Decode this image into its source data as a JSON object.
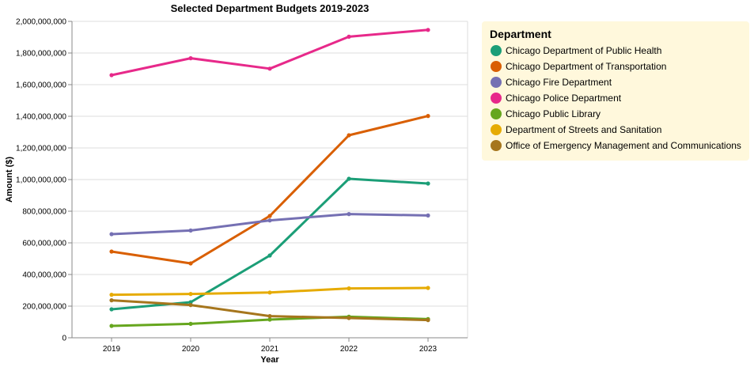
{
  "chart_data": {
    "type": "line",
    "title": "Selected Department Budgets 2019-2023",
    "xlabel": "Year",
    "ylabel": "Amount ($)",
    "x": [
      2019,
      2020,
      2021,
      2022,
      2023
    ],
    "x_tick_labels": [
      "2019",
      "2020",
      "2021",
      "2022",
      "2023"
    ],
    "ylim": [
      0,
      2000000000
    ],
    "y_ticks": [
      0,
      200000000,
      400000000,
      600000000,
      800000000,
      1000000000,
      1200000000,
      1400000000,
      1600000000,
      1800000000,
      2000000000
    ],
    "y_tick_labels": [
      "0",
      "200,000,000",
      "400,000,000",
      "600,000,000",
      "800,000,000",
      "1,000,000,000",
      "1,200,000,000",
      "1,400,000,000",
      "1,600,000,000",
      "1,800,000,000",
      "2,000,000,000"
    ],
    "grid": true,
    "legend": {
      "title": "Department",
      "placement": "right",
      "background": "#fff8dc"
    },
    "series": [
      {
        "name": "Chicago Department of Public Health",
        "color": "#1b9e77",
        "values": [
          180000000,
          225000000,
          520000000,
          1005000000,
          975000000
        ]
      },
      {
        "name": "Chicago Department of Transportation",
        "color": "#d95f02",
        "values": [
          545000000,
          470000000,
          770000000,
          1280000000,
          1402000000
        ]
      },
      {
        "name": "Chicago Fire Department",
        "color": "#7570b3",
        "values": [
          655000000,
          678000000,
          742000000,
          782000000,
          773000000
        ]
      },
      {
        "name": "Chicago Police Department",
        "color": "#e7298a",
        "values": [
          1660000000,
          1767000000,
          1701000000,
          1903000000,
          1946000000
        ]
      },
      {
        "name": "Chicago Public Library",
        "color": "#66a61e",
        "values": [
          75000000,
          88000000,
          115000000,
          133000000,
          118000000
        ]
      },
      {
        "name": "Department of Streets and Sanitation",
        "color": "#e6ab02",
        "values": [
          272000000,
          277000000,
          286000000,
          312000000,
          315000000
        ]
      },
      {
        "name": "Office of Emergency Management and Communications",
        "color": "#a6761d",
        "values": [
          237000000,
          207000000,
          137000000,
          125000000,
          112000000
        ]
      }
    ]
  }
}
